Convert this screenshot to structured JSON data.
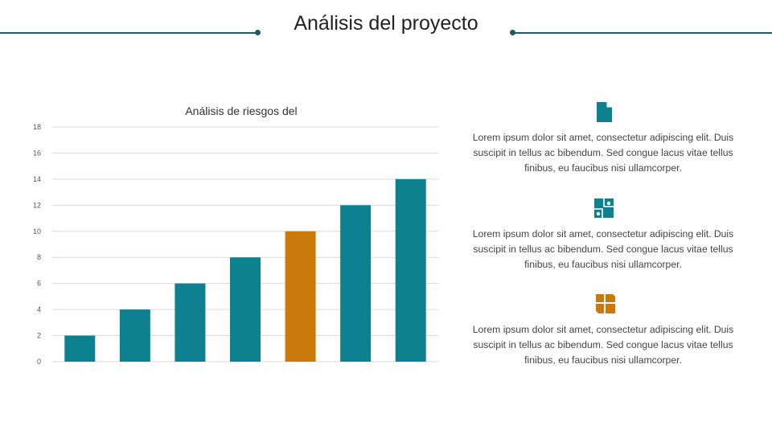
{
  "header": {
    "title": "Análisis del proyecto"
  },
  "colors": {
    "primary": "#0e8191",
    "accent": "#c97a0a",
    "line": "#1c5a68",
    "grid": "#d9d9d9"
  },
  "chart_data": {
    "type": "bar",
    "title": "Análisis de riesgos del",
    "categories": [
      "",
      "",
      "",
      "",
      "",
      "",
      ""
    ],
    "values": [
      2,
      4,
      6,
      8,
      10,
      12,
      14
    ],
    "highlight_index": 4,
    "ylim": [
      0,
      18
    ],
    "yticks": [
      0,
      2,
      4,
      6,
      8,
      10,
      12,
      14,
      16,
      18
    ],
    "grid": true,
    "legend": "none"
  },
  "info_items": [
    {
      "icon": "document-icon",
      "text": "Lorem ipsum dolor sit amet, consectetur adipiscing elit. Duis suscipit in tellus ac bibendum. Sed congue lacus vitae tellus finibus, eu faucibus nisi ullamcorper."
    },
    {
      "icon": "puzzle-icon",
      "text": "Lorem ipsum dolor sit amet, consectetur adipiscing elit. Duis suscipit in tellus ac bibendum. Sed congue lacus vitae tellus finibus, eu faucibus nisi ullamcorper."
    },
    {
      "icon": "grid-blocks-icon",
      "text": "Lorem ipsum dolor sit amet, consectetur adipiscing elit. Duis suscipit in tellus ac bibendum. Sed congue lacus vitae tellus finibus, eu faucibus nisi ullamcorper."
    }
  ]
}
